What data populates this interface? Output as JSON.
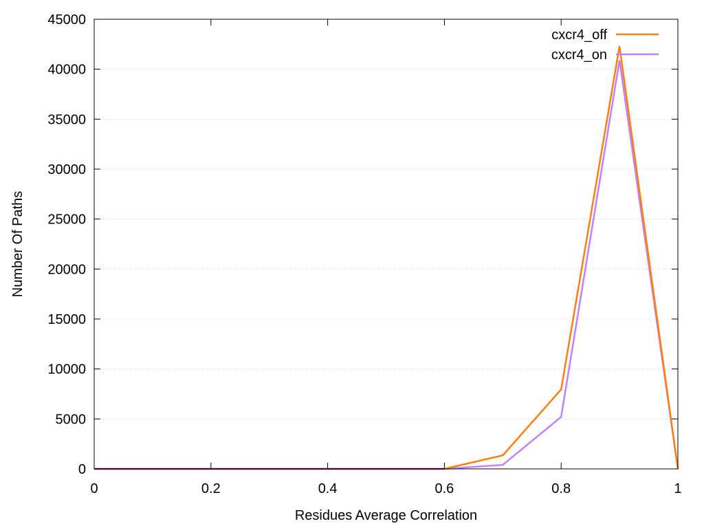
{
  "chart_data": {
    "type": "line",
    "title": "",
    "xlabel": "Residues Average Correlation",
    "ylabel": "Number Of Paths",
    "xlim": [
      0,
      1
    ],
    "ylim": [
      0,
      45000
    ],
    "xticks": [
      0,
      0.2,
      0.4,
      0.6,
      0.8,
      1
    ],
    "xtick_labels": [
      "0",
      "0.2",
      "0.4",
      "0.6",
      "0.8",
      "1"
    ],
    "yticks": [
      0,
      5000,
      10000,
      15000,
      20000,
      25000,
      30000,
      35000,
      40000,
      45000
    ],
    "ytick_labels": [
      "0",
      "5000",
      "10000",
      "15000",
      "20000",
      "25000",
      "30000",
      "35000",
      "40000",
      "45000"
    ],
    "grid": true,
    "legend_position": "top-right",
    "x": [
      0,
      0.1,
      0.2,
      0.3,
      0.4,
      0.5,
      0.6,
      0.7,
      0.8,
      0.9,
      1.0
    ],
    "series": [
      {
        "name": "cxcr4_off",
        "color": "#ff7f0e",
        "values": [
          0,
          0,
          0,
          0,
          0,
          0,
          0,
          1350,
          7950,
          42300,
          0
        ]
      },
      {
        "name": "cxcr4_on",
        "color": "#c080ff",
        "values": [
          0,
          0,
          0,
          0,
          0,
          0,
          0,
          400,
          5200,
          40900,
          0
        ]
      }
    ],
    "zero_line_color": "#6a0dad"
  }
}
